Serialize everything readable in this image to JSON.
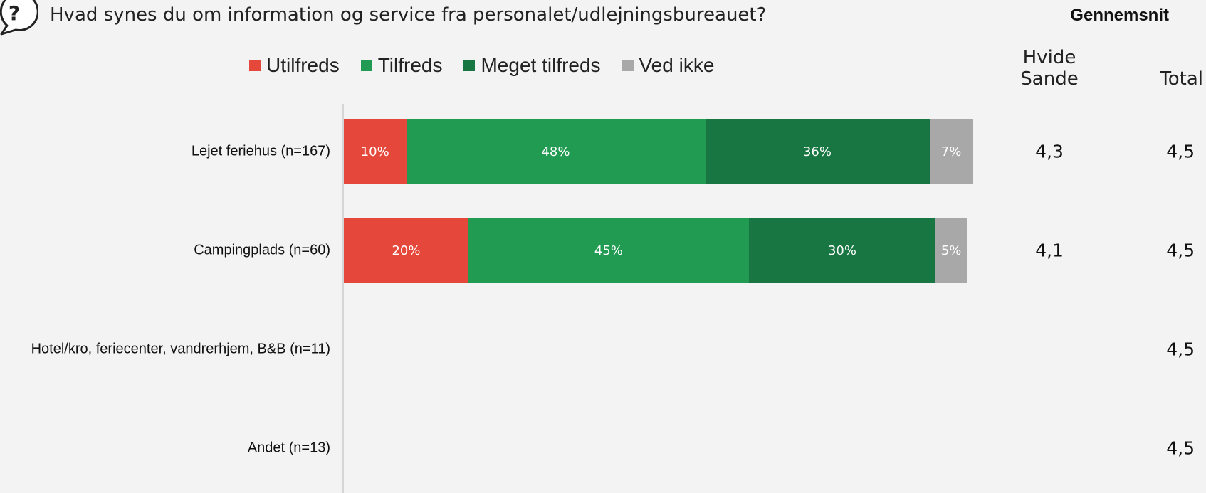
{
  "question": "Hvad synes du om information og service fra personalet/udlejningsbureauet?",
  "avg_header": "Gennemsnit",
  "columns": {
    "hvide_sande": "Hvide Sande",
    "total": "Total"
  },
  "colors": {
    "Utilfreds": "#e5483b",
    "Tilfreds": "#219b52",
    "Meget tilfreds": "#177641",
    "Ved ikke": "#a8a8a8"
  },
  "chart_data": {
    "type": "bar",
    "orientation": "horizontal",
    "stacked": true,
    "categories": [
      "Lejet feriehus (n=167)",
      "Campingplads (n=60)",
      "Hotel/kro, feriecenter, vandrerhjem, B&B (n=11)",
      "Andet (n=13)"
    ],
    "series": [
      {
        "name": "Utilfreds",
        "values": [
          10,
          20,
          null,
          null
        ]
      },
      {
        "name": "Tilfreds",
        "values": [
          48,
          45,
          null,
          null
        ]
      },
      {
        "name": "Meget tilfreds",
        "values": [
          36,
          30,
          null,
          null
        ]
      },
      {
        "name": "Ved ikke",
        "values": [
          7,
          5,
          null,
          null
        ]
      }
    ],
    "value_format": "%",
    "xlim": [
      0,
      100
    ],
    "legend_position": "top",
    "averages": {
      "hvide_sande": [
        "4,3",
        "4,1",
        null,
        null
      ],
      "total": [
        "4,5",
        "4,5",
        "4,5",
        "4,5"
      ]
    }
  }
}
